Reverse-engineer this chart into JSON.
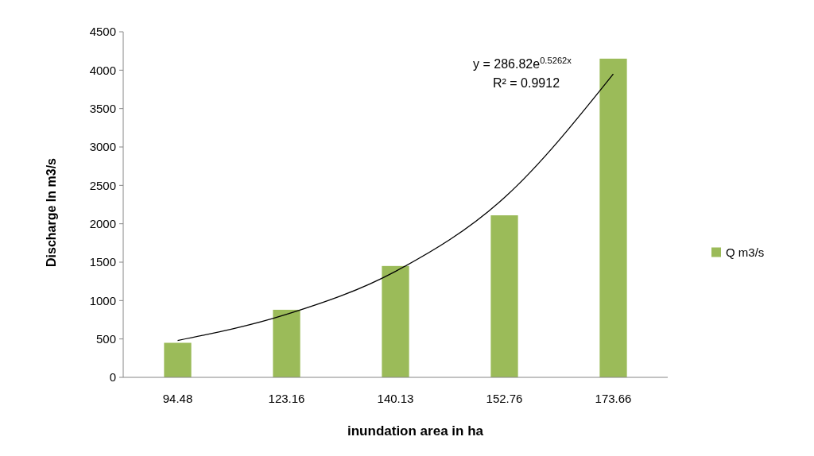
{
  "chart_data": {
    "type": "bar",
    "xlabel": "inundation area in ha",
    "ylabel": "Discharge In m3/s",
    "categories": [
      "94.48",
      "123.16",
      "140.13",
      "152.76",
      "173.66"
    ],
    "series": [
      {
        "name": "Q m3/s",
        "color": "#9bbb59",
        "values": [
          450,
          880,
          1450,
          2110,
          4150
        ]
      },
      {
        "type": "line",
        "color": "#000000",
        "values": [
          480,
          820,
          1380,
          2340,
          3950
        ]
      }
    ],
    "ylim": [
      0,
      4500
    ],
    "yticks": [
      0,
      500,
      1000,
      1500,
      2000,
      2500,
      3000,
      3500,
      4000,
      4500
    ],
    "grid": false,
    "legend": "right",
    "annotations": [
      "y = 286.82e$^{0.5262x}$",
      "R² = 0.9912"
    ]
  }
}
